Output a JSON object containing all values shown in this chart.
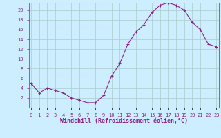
{
  "x": [
    0,
    1,
    2,
    3,
    4,
    5,
    6,
    7,
    8,
    9,
    10,
    11,
    12,
    13,
    14,
    15,
    16,
    17,
    18,
    19,
    20,
    21,
    22,
    23
  ],
  "y": [
    5,
    3,
    4,
    3.5,
    3,
    2,
    1.5,
    1,
    1,
    2.5,
    6.5,
    9,
    13,
    15.5,
    17,
    19.5,
    21,
    21.5,
    21,
    20,
    17.5,
    16,
    13,
    12.5
  ],
  "line_color": "#882288",
  "marker": "+",
  "marker_color": "#882288",
  "bg_color": "#cceeff",
  "grid_color": "#aacccc",
  "xlabel": "Windchill (Refroidissement éolien,°C)",
  "xlabel_color": "#882288",
  "ylabel_ticks": [
    2,
    4,
    6,
    8,
    10,
    12,
    14,
    16,
    18,
    20
  ],
  "xtick_labels": [
    "0",
    "1",
    "2",
    "3",
    "4",
    "5",
    "6",
    "7",
    "8",
    "9",
    "10",
    "11",
    "12",
    "13",
    "14",
    "15",
    "16",
    "17",
    "18",
    "19",
    "20",
    "21",
    "22",
    "23"
  ],
  "ylim": [
    0,
    21.5
  ],
  "xlim": [
    -0.3,
    23.3
  ],
  "tick_color": "#882288",
  "tick_fontsize": 5.0,
  "xlabel_fontsize": 6.0,
  "linewidth": 0.8,
  "markersize": 3.0
}
